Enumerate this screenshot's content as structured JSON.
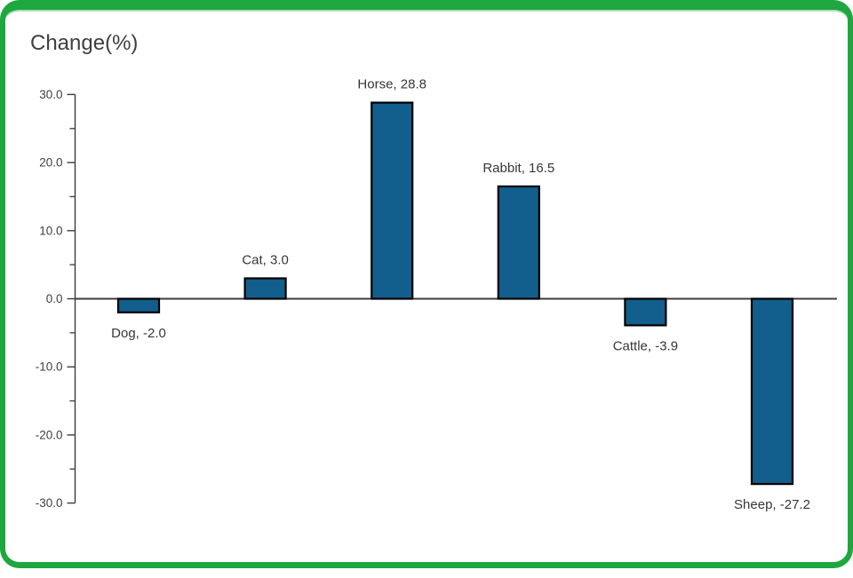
{
  "frame": {
    "border_color": "#1ea73e",
    "background_color": "#ffffff"
  },
  "chart_data": {
    "type": "bar",
    "title": "Change(%)",
    "categories": [
      "Dog",
      "Cat",
      "Horse",
      "Rabbit",
      "Cattle",
      "Sheep"
    ],
    "values": [
      -2.0,
      3.0,
      28.8,
      16.5,
      -3.9,
      -27.2
    ],
    "data_labels": [
      "Dog, -2.0",
      "Cat, 3.0",
      "Horse, 28.8",
      "Rabbit, 16.5",
      "Cattle, -3.9",
      "Sheep, -27.2"
    ],
    "xlabel": "",
    "ylabel": "",
    "ylim": [
      -30,
      30
    ],
    "grid": false,
    "legend_position": "none",
    "axis": {
      "y_tick_values": [
        30,
        20,
        10,
        0,
        -10,
        -20,
        -30
      ],
      "y_tick_labels": [
        "30.0",
        "20.0",
        "10.0",
        "0.0",
        "-10.0",
        "-20.0",
        "-30.0"
      ],
      "y_minor_tick_values": [
        25,
        15,
        5,
        -5,
        -15,
        -25
      ]
    },
    "colors": {
      "bar_fill": "#125e8c",
      "bar_border": "#000000",
      "axis_line": "#3c3c3c",
      "tick_label": "#404040",
      "data_label": "#363636",
      "title": "#3f3f3f"
    }
  }
}
